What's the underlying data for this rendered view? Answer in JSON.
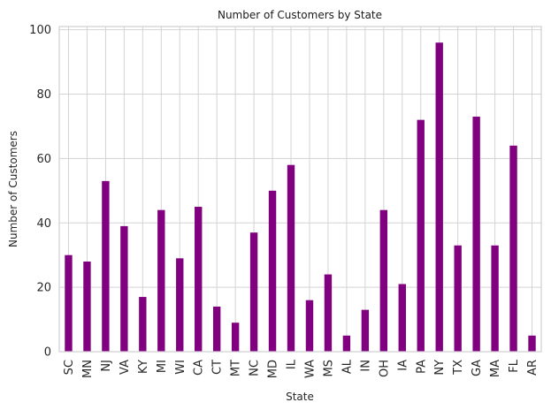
{
  "chart_data": {
    "type": "bar",
    "title": "Number of Customers by State",
    "xlabel": "State",
    "ylabel": "Number of Customers",
    "categories": [
      "SC",
      "MN",
      "NJ",
      "VA",
      "KY",
      "MI",
      "WI",
      "CA",
      "CT",
      "MT",
      "NC",
      "MD",
      "IL",
      "WA",
      "MS",
      "AL",
      "IN",
      "OH",
      "IA",
      "PA",
      "NY",
      "TX",
      "GA",
      "MA",
      "FL",
      "AR"
    ],
    "values": [
      30,
      28,
      53,
      39,
      17,
      44,
      29,
      45,
      14,
      9,
      37,
      50,
      58,
      16,
      24,
      5,
      13,
      44,
      21,
      72,
      96,
      33,
      73,
      33,
      64,
      5
    ],
    "y_ticks": [
      0,
      20,
      40,
      60,
      80,
      100
    ],
    "ylim": [
      0,
      101
    ],
    "grid": true,
    "bar_color": "#800080"
  }
}
